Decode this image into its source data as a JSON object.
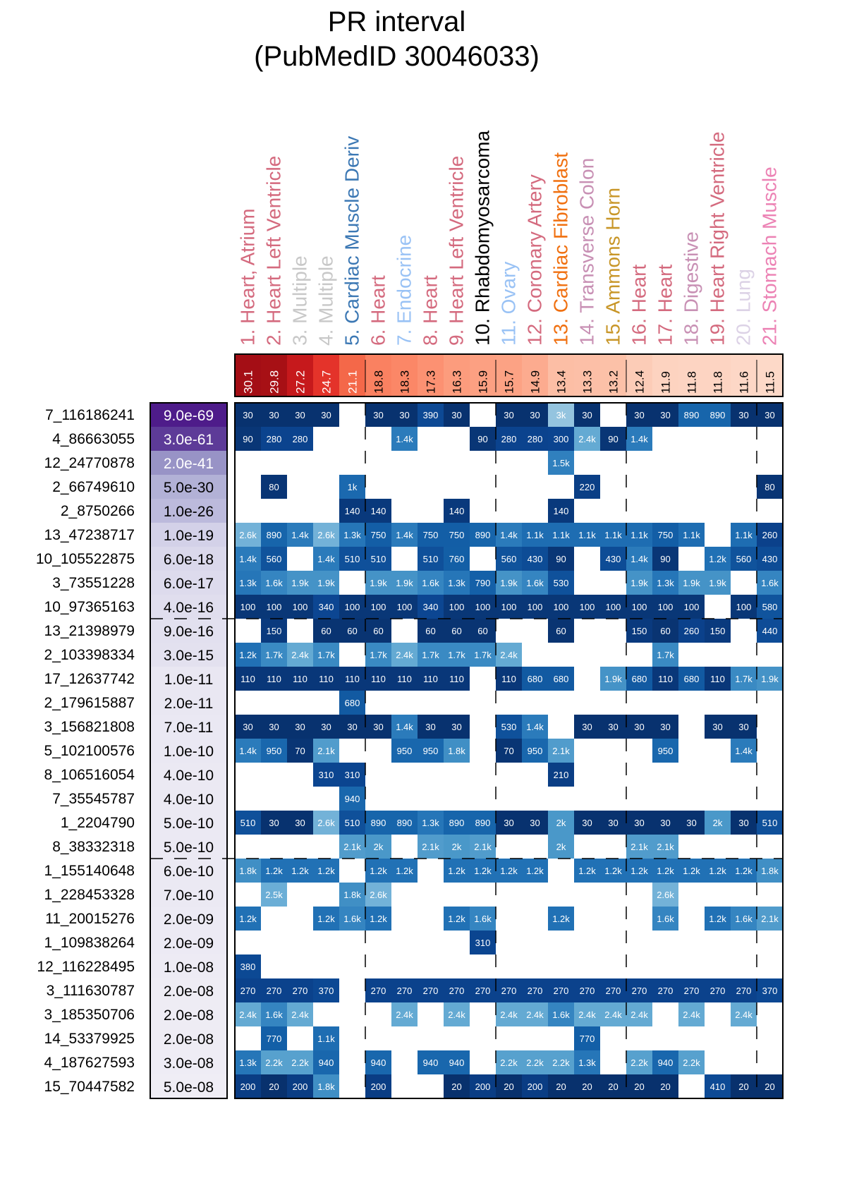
{
  "chart_data": {
    "type": "heatmap",
    "title": "PR interval",
    "subtitle": "(PubMedID 30046033)",
    "columns": [
      {
        "label": "1. Heart, Atrium",
        "color": "#d46a7e",
        "score": "30.1"
      },
      {
        "label": "2. Heart Left Ventricle",
        "color": "#d46a7e",
        "score": "29.8"
      },
      {
        "label": "3. Multiple",
        "color": "#c8c8c8",
        "score": "27.2"
      },
      {
        "label": "4. Multiple",
        "color": "#c8c8c8",
        "score": "24.7"
      },
      {
        "label": "5. Cardiac Muscle Deriv",
        "color": "#3c78b4",
        "score": "21.1"
      },
      {
        "label": "6. Heart",
        "color": "#d46a7e",
        "score": "18.8"
      },
      {
        "label": "7. Endocrine",
        "color": "#99c2f5",
        "score": "18.3"
      },
      {
        "label": "8. Heart",
        "color": "#d46a7e",
        "score": "17.3"
      },
      {
        "label": "9. Heart Left Ventricle",
        "color": "#d46a7e",
        "score": "16.3"
      },
      {
        "label": "10. Rhabdomyosarcoma",
        "color": "#000000",
        "score": "15.9"
      },
      {
        "label": "11. Ovary",
        "color": "#99c2f5",
        "score": "15.7"
      },
      {
        "label": "12. Coronary Artery",
        "color": "#d46a7e",
        "score": "14.9"
      },
      {
        "label": "13. Cardiac Fibroblast",
        "color": "#f07010",
        "score": "13.4"
      },
      {
        "label": "14. Transverse Colon",
        "color": "#c890b4",
        "score": "13.3"
      },
      {
        "label": "15. Ammons Horn",
        "color": "#c89628",
        "score": "13.2"
      },
      {
        "label": "16. Heart",
        "color": "#d46a7e",
        "score": "12.4"
      },
      {
        "label": "17. Heart",
        "color": "#d46a7e",
        "score": "11.9"
      },
      {
        "label": "18. Digestive",
        "color": "#c890b4",
        "score": "11.8"
      },
      {
        "label": "19. Heart Right Ventricle",
        "color": "#d46a7e",
        "score": "11.8"
      },
      {
        "label": "20. Lung",
        "color": "#dcd2e6",
        "score": "11.6"
      },
      {
        "label": "21. Stomach Muscle",
        "color": "#ec82b4",
        "score": "11.5"
      }
    ],
    "column_group_breaks_after": [
      5,
      10,
      15,
      20
    ],
    "row_group_breaks_after": [
      9,
      19
    ],
    "rows": [
      {
        "snp": "7_116186241",
        "pval": "9.0e-69",
        "cells": [
          "30",
          "30",
          "30",
          "30",
          "",
          "30",
          "30",
          "390",
          "30",
          "",
          "30",
          "30",
          "3k",
          "30",
          "",
          "30",
          "30",
          "890",
          "890",
          "30",
          "30"
        ]
      },
      {
        "snp": "4_86663055",
        "pval": "3.0e-61",
        "cells": [
          "90",
          "280",
          "280",
          "",
          "",
          "",
          "1.4k",
          "",
          "",
          "90",
          "280",
          "280",
          "300",
          "2.4k",
          "90",
          "1.4k",
          "",
          "",
          "",
          "",
          ""
        ]
      },
      {
        "snp": "12_24770878",
        "pval": "2.0e-41",
        "cells": [
          "",
          "",
          "",
          "",
          "",
          "",
          "",
          "",
          "",
          "",
          "",
          "",
          "1.5k",
          "",
          "",
          "",
          "",
          "",
          "",
          "",
          ""
        ]
      },
      {
        "snp": "2_66749610",
        "pval": "5.0e-30",
        "cells": [
          "",
          "80",
          "",
          "",
          "1k",
          "",
          "",
          "",
          "",
          "",
          "",
          "",
          "",
          "220",
          "",
          "",
          "",
          "",
          "",
          "",
          "80"
        ]
      },
      {
        "snp": "2_8750266",
        "pval": "1.0e-26",
        "cells": [
          "",
          "",
          "",
          "",
          "140",
          "140",
          "",
          "",
          "140",
          "",
          "",
          "",
          "140",
          "",
          "",
          "",
          "",
          "",
          "",
          "",
          ""
        ]
      },
      {
        "snp": "13_47238717",
        "pval": "1.0e-19",
        "cells": [
          "2.6k",
          "890",
          "1.4k",
          "2.6k",
          "1.3k",
          "750",
          "1.4k",
          "750",
          "750",
          "890",
          "1.4k",
          "1.1k",
          "1.1k",
          "1.1k",
          "1.1k",
          "1.1k",
          "750",
          "1.1k",
          "",
          "1.1k",
          "260"
        ]
      },
      {
        "snp": "10_105522875",
        "pval": "6.0e-18",
        "cells": [
          "1.4k",
          "560",
          "",
          "1.4k",
          "510",
          "510",
          "",
          "510",
          "760",
          "",
          "560",
          "430",
          "90",
          "",
          "430",
          "1.4k",
          "90",
          "",
          "1.2k",
          "560",
          "430"
        ]
      },
      {
        "snp": "3_73551228",
        "pval": "6.0e-17",
        "cells": [
          "1.3k",
          "1.6k",
          "1.9k",
          "1.9k",
          "",
          "1.9k",
          "1.9k",
          "1.6k",
          "1.3k",
          "790",
          "1.9k",
          "1.6k",
          "530",
          "",
          "",
          "1.9k",
          "1.3k",
          "1.9k",
          "1.9k",
          "",
          "1.6k"
        ]
      },
      {
        "snp": "10_97365163",
        "pval": "4.0e-16",
        "cells": [
          "100",
          "100",
          "100",
          "340",
          "100",
          "100",
          "100",
          "340",
          "100",
          "100",
          "100",
          "100",
          "100",
          "100",
          "100",
          "100",
          "100",
          "100",
          "",
          "100",
          "580"
        ]
      },
      {
        "snp": "13_21398979",
        "pval": "9.0e-16",
        "cells": [
          "",
          "150",
          "",
          "60",
          "60",
          "60",
          "",
          "60",
          "60",
          "60",
          "",
          "",
          "60",
          "",
          "",
          "150",
          "60",
          "260",
          "150",
          "",
          "440"
        ]
      },
      {
        "snp": "2_103398334",
        "pval": "3.0e-15",
        "cells": [
          "1.2k",
          "1.7k",
          "2.4k",
          "1.7k",
          "",
          "1.7k",
          "2.4k",
          "1.7k",
          "1.7k",
          "1.7k",
          "2.4k",
          "",
          "",
          "",
          "",
          "",
          "1.7k",
          "",
          "",
          "",
          ""
        ]
      },
      {
        "snp": "17_12637742",
        "pval": "1.0e-11",
        "cells": [
          "110",
          "110",
          "110",
          "110",
          "110",
          "110",
          "110",
          "110",
          "110",
          "",
          "110",
          "680",
          "680",
          "",
          "1.9k",
          "680",
          "110",
          "680",
          "110",
          "1.7k",
          "1.9k"
        ]
      },
      {
        "snp": "2_179615887",
        "pval": "2.0e-11",
        "cells": [
          "",
          "",
          "",
          "",
          "680",
          "",
          "",
          "",
          "",
          "",
          "",
          "",
          "",
          "",
          "",
          "",
          "",
          "",
          "",
          "",
          ""
        ]
      },
      {
        "snp": "3_156821808",
        "pval": "7.0e-11",
        "cells": [
          "30",
          "30",
          "30",
          "30",
          "30",
          "30",
          "1.4k",
          "30",
          "30",
          "",
          "530",
          "1.4k",
          "",
          "30",
          "30",
          "30",
          "30",
          "",
          "30",
          "30",
          ""
        ]
      },
      {
        "snp": "5_102100576",
        "pval": "1.0e-10",
        "cells": [
          "1.4k",
          "950",
          "70",
          "2.1k",
          "",
          "",
          "950",
          "950",
          "1.8k",
          "",
          "70",
          "950",
          "2.1k",
          "",
          "",
          "",
          "950",
          "",
          "",
          "1.4k",
          ""
        ]
      },
      {
        "snp": "8_106516054",
        "pval": "4.0e-10",
        "cells": [
          "",
          "",
          "",
          "310",
          "310",
          "",
          "",
          "",
          "",
          "",
          "",
          "",
          "210",
          "",
          "",
          "",
          "",
          "",
          "",
          "",
          ""
        ]
      },
      {
        "snp": "7_35545787",
        "pval": "4.0e-10",
        "cells": [
          "",
          "",
          "",
          "",
          "940",
          "",
          "",
          "",
          "",
          "",
          "",
          "",
          "",
          "",
          "",
          "",
          "",
          "",
          "",
          "",
          ""
        ]
      },
      {
        "snp": "1_2204790",
        "pval": "5.0e-10",
        "cells": [
          "510",
          "30",
          "30",
          "2.6k",
          "510",
          "890",
          "890",
          "1.3k",
          "890",
          "890",
          "30",
          "30",
          "2k",
          "30",
          "30",
          "30",
          "30",
          "30",
          "2k",
          "30",
          "510"
        ]
      },
      {
        "snp": "8_38332318",
        "pval": "5.0e-10",
        "cells": [
          "",
          "",
          "",
          "",
          "2.1k",
          "2k",
          "",
          "2.1k",
          "2k",
          "2.1k",
          "",
          "",
          "2k",
          "",
          "",
          "2.1k",
          "2.1k",
          "",
          "",
          "",
          ""
        ]
      },
      {
        "snp": "1_155140648",
        "pval": "6.0e-10",
        "cells": [
          "1.8k",
          "1.2k",
          "1.2k",
          "1.2k",
          "",
          "1.2k",
          "1.2k",
          "",
          "1.2k",
          "1.2k",
          "1.2k",
          "1.2k",
          "",
          "1.2k",
          "1.2k",
          "1.2k",
          "1.2k",
          "1.2k",
          "1.2k",
          "1.2k",
          "1.8k"
        ]
      },
      {
        "snp": "1_228453328",
        "pval": "7.0e-10",
        "cells": [
          "",
          "2.5k",
          "",
          "",
          "1.8k",
          "2.6k",
          "",
          "",
          "",
          "",
          "",
          "",
          "",
          "",
          "",
          "",
          "2.6k",
          "",
          "",
          "",
          ""
        ]
      },
      {
        "snp": "11_20015276",
        "pval": "2.0e-09",
        "cells": [
          "1.2k",
          "",
          "",
          "1.2k",
          "1.6k",
          "1.2k",
          "",
          "",
          "1.2k",
          "1.6k",
          "",
          "",
          "1.2k",
          "",
          "",
          "",
          "1.6k",
          "",
          "1.2k",
          "1.6k",
          "2.1k"
        ]
      },
      {
        "snp": "1_109838264",
        "pval": "2.0e-09",
        "cells": [
          "",
          "",
          "",
          "",
          "",
          "",
          "",
          "",
          "",
          "310",
          "",
          "",
          "",
          "",
          "",
          "",
          "",
          "",
          "",
          "",
          ""
        ]
      },
      {
        "snp": "12_116228495",
        "pval": "1.0e-08",
        "cells": [
          "380",
          "",
          "",
          "",
          "",
          "",
          "",
          "",
          "",
          "",
          "",
          "",
          "",
          "",
          "",
          "",
          "",
          "",
          "",
          "",
          ""
        ]
      },
      {
        "snp": "3_111630787",
        "pval": "2.0e-08",
        "cells": [
          "270",
          "270",
          "270",
          "370",
          "",
          "270",
          "270",
          "270",
          "270",
          "270",
          "270",
          "270",
          "270",
          "270",
          "270",
          "270",
          "270",
          "270",
          "270",
          "270",
          "370"
        ]
      },
      {
        "snp": "3_185350706",
        "pval": "2.0e-08",
        "cells": [
          "2.4k",
          "1.6k",
          "2.4k",
          "",
          "",
          "",
          "2.4k",
          "",
          "2.4k",
          "",
          "2.4k",
          "2.4k",
          "1.6k",
          "2.4k",
          "2.4k",
          "2.4k",
          "",
          "2.4k",
          "",
          "2.4k",
          ""
        ]
      },
      {
        "snp": "14_53379925",
        "pval": "2.0e-08",
        "cells": [
          "",
          "770",
          "",
          "1.1k",
          "",
          "",
          "",
          "",
          "",
          "",
          "",
          "",
          "",
          "770",
          "",
          "",
          "",
          "",
          "",
          "",
          ""
        ]
      },
      {
        "snp": "4_187627593",
        "pval": "3.0e-08",
        "cells": [
          "1.3k",
          "2.2k",
          "2.2k",
          "940",
          "",
          "940",
          "",
          "940",
          "940",
          "",
          "2.2k",
          "2.2k",
          "2.2k",
          "1.3k",
          "",
          "2.2k",
          "940",
          "2.2k",
          "",
          "",
          ""
        ]
      },
      {
        "snp": "15_70447582",
        "pval": "5.0e-08",
        "cells": [
          "200",
          "20",
          "200",
          "1.8k",
          "",
          "200",
          "",
          "",
          "20",
          "200",
          "20",
          "200",
          "20",
          "20",
          "20",
          "20",
          "20",
          "",
          "410",
          "20",
          "20"
        ]
      }
    ]
  }
}
